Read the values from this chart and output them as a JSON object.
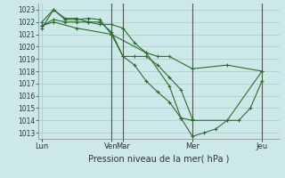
{
  "background_color": "#cce8e8",
  "grid_color": "#aacccc",
  "line_color": "#2d6e2d",
  "marker_color": "#2d6e2d",
  "xlabel_text": "Pression niveau de la mer( hPa )",
  "ylim": [
    1012.5,
    1023.5
  ],
  "yticks": [
    1013,
    1014,
    1015,
    1016,
    1017,
    1018,
    1019,
    1020,
    1021,
    1022,
    1023
  ],
  "xlim": [
    -0.3,
    20.5
  ],
  "xtick_positions": [
    0,
    6,
    7,
    13,
    19
  ],
  "xtick_labels": [
    "Lun",
    "Ven",
    "Mar",
    "Mer",
    "Jeu"
  ],
  "vline_positions": [
    6,
    7,
    13,
    19
  ],
  "series": [
    {
      "x": [
        0,
        1,
        2,
        3,
        4,
        5,
        6,
        7,
        8,
        9,
        10,
        11,
        13,
        16,
        19
      ],
      "y": [
        1021.7,
        1022.2,
        1022.0,
        1022.0,
        1022.0,
        1021.8,
        1021.8,
        1021.5,
        1020.3,
        1019.5,
        1019.2,
        1019.2,
        1018.2,
        1018.5,
        1018.0
      ]
    },
    {
      "x": [
        0,
        1,
        2,
        3,
        4,
        5,
        6,
        7,
        8,
        9,
        10,
        11,
        12,
        13
      ],
      "y": [
        1022.0,
        1023.0,
        1022.2,
        1022.2,
        1022.3,
        1022.2,
        1021.0,
        1019.2,
        1019.2,
        1019.2,
        1018.5,
        1017.5,
        1016.5,
        1014.1
      ]
    },
    {
      "x": [
        0,
        1,
        2,
        3,
        4,
        5,
        6,
        7,
        8,
        9,
        10,
        11,
        12,
        13,
        14,
        15,
        16,
        17,
        18,
        19
      ],
      "y": [
        1021.5,
        1023.0,
        1022.3,
        1022.3,
        1022.0,
        1022.0,
        1021.2,
        1019.2,
        1018.5,
        1017.2,
        1016.3,
        1015.5,
        1014.2,
        1012.7,
        1013.0,
        1013.3,
        1014.0,
        1014.0,
        1015.0,
        1017.2
      ]
    },
    {
      "x": [
        0,
        1,
        3,
        6,
        9,
        11,
        12,
        13,
        16,
        19
      ],
      "y": [
        1021.7,
        1022.0,
        1021.5,
        1021.0,
        1019.5,
        1016.8,
        1014.2,
        1014.0,
        1014.0,
        1018.0
      ]
    }
  ]
}
